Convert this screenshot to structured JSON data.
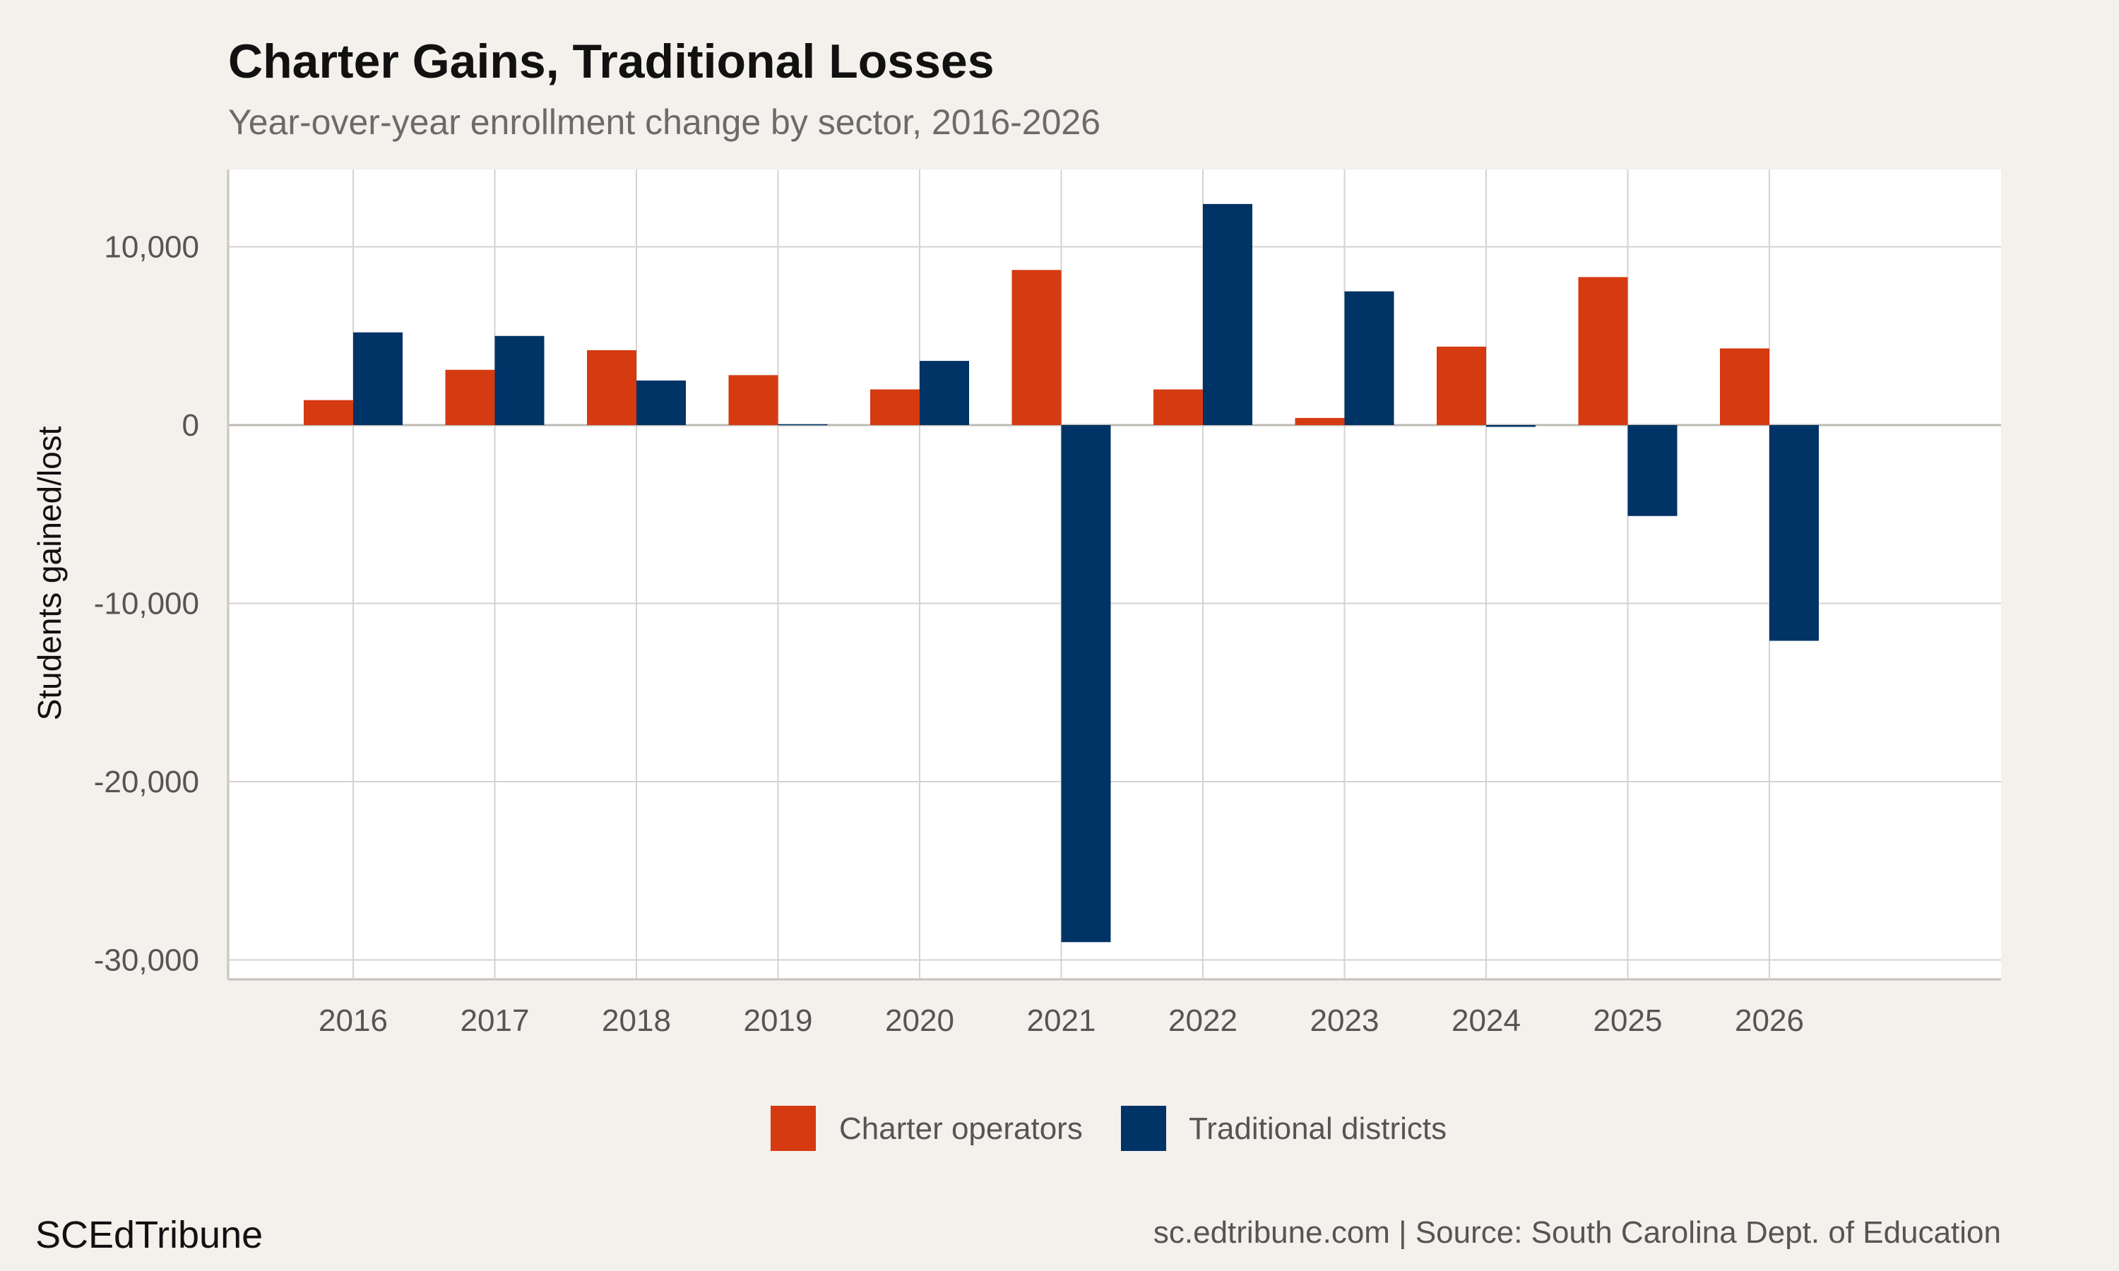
{
  "chart_data": {
    "type": "bar",
    "title": "Charter Gains, Traditional Losses",
    "subtitle": "Year-over-year enrollment change by sector, 2016-2026",
    "xlabel": "",
    "ylabel": "Students gained/lost",
    "categories": [
      "2016",
      "2017",
      "2018",
      "2019",
      "2020",
      "2021",
      "2022",
      "2023",
      "2024",
      "2025",
      "2026"
    ],
    "series": [
      {
        "name": "Charter operators",
        "color": "#d63a10",
        "values": [
          1400,
          3100,
          4200,
          2800,
          2000,
          8700,
          2000,
          400,
          4400,
          8300,
          4300
        ]
      },
      {
        "name": "Traditional districts",
        "color": "#003366",
        "values": [
          5200,
          5000,
          2500,
          50,
          3600,
          -29000,
          12400,
          7500,
          -100,
          -5100,
          -12100
        ]
      }
    ],
    "ylim": [
      -31000,
      14500
    ],
    "yticks": [
      10000,
      0,
      -10000,
      -20000,
      -30000
    ],
    "ytick_labels": [
      "10,000",
      "0",
      "-10,000",
      "-20,000",
      "-30,000"
    ],
    "grid": true,
    "legend_position": "bottom-center"
  },
  "footer": {
    "brand": "SCEdTribune",
    "source": "sc.edtribune.com | Source: South Carolina Dept. of Education"
  }
}
